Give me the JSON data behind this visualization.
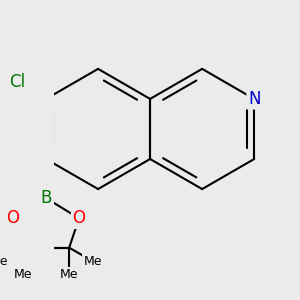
{
  "background_color": "#EBEBEB",
  "bond_color": "#000000",
  "bond_width": 1.5,
  "atoms": {
    "N": {
      "color": "#0000CC"
    },
    "O": {
      "color": "#FF0000"
    },
    "B": {
      "color": "#007700"
    },
    "Cl": {
      "color": "#007700"
    },
    "C": {
      "color": "#000000"
    }
  },
  "figsize": [
    3.0,
    3.0
  ],
  "dpi": 100,
  "xlim": [
    -1.6,
    1.9
  ],
  "ylim": [
    -2.8,
    2.1
  ]
}
